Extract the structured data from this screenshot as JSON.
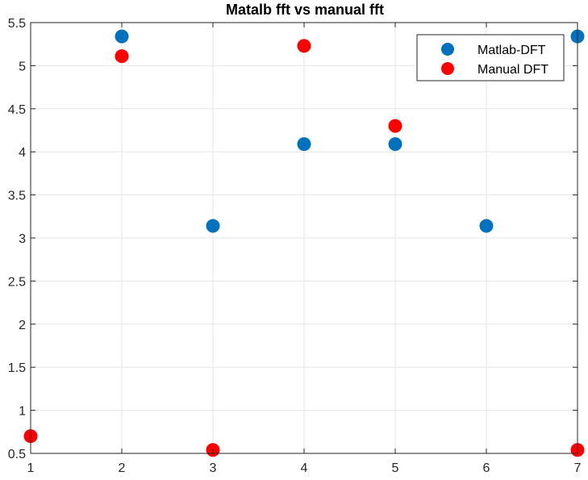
{
  "chart_data": {
    "type": "scatter",
    "title": "Matalb fft vs manual fft",
    "xlabel": "",
    "ylabel": "",
    "xlim": [
      1,
      7
    ],
    "ylim": [
      0.5,
      5.5
    ],
    "xticks": [
      1,
      2,
      3,
      4,
      5,
      6,
      7
    ],
    "yticks": [
      0.5,
      1,
      1.5,
      2,
      2.5,
      3,
      3.5,
      4,
      4.5,
      5,
      5.5
    ],
    "grid": true,
    "legend_position": "top-right",
    "series": [
      {
        "name": "Matlab-DFT",
        "color": "#0072BD",
        "x": [
          2,
          3,
          4,
          5,
          6,
          7
        ],
        "y": [
          5.34,
          3.14,
          4.09,
          4.09,
          3.14,
          5.34
        ]
      },
      {
        "name": "Manual DFT",
        "color": "#FF0000",
        "x": [
          1,
          2,
          3,
          4,
          5,
          7
        ],
        "y": [
          0.7,
          5.11,
          0.54,
          5.23,
          4.3,
          0.54
        ]
      }
    ]
  }
}
